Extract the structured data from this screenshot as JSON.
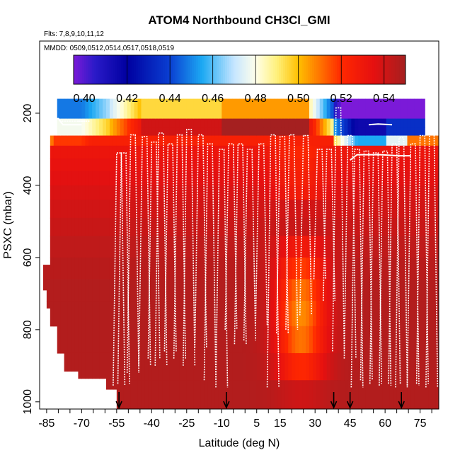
{
  "chart_data": {
    "type": "heatmap",
    "title": "ATOM4 Northbound CH3Cl_GMI",
    "subtitle_flights": "Flts: 7,8,9,10,11,12",
    "subtitle_dates": "MMDD: 0509,0512,0514,0517,0518,0519",
    "xlabel": "Latitude (deg N)",
    "ylabel": "PSXC (mbar)",
    "xlim": [
      -88,
      83
    ],
    "ylim": [
      1020,
      0
    ],
    "x_tick_labels": [
      -85,
      -70,
      -55,
      -40,
      -25,
      -10,
      5,
      15,
      30,
      45,
      60,
      75
    ],
    "y_tick_labels": [
      200,
      400,
      600,
      800,
      1000
    ],
    "colorbar": {
      "range": [
        0.395,
        0.55
      ],
      "tick_labels": [
        "0.40",
        "0.42",
        "0.44",
        "0.46",
        "0.48",
        "0.50",
        "0.52",
        "0.54"
      ],
      "boundaries": [
        0.42,
        0.44,
        0.46,
        0.48,
        0.5,
        0.52,
        0.54
      ],
      "color_stops": [
        [
          0.395,
          "#7b1ad8"
        ],
        [
          0.405,
          "#2a1ac8"
        ],
        [
          0.42,
          "#0000a0"
        ],
        [
          0.44,
          "#0a3fd2"
        ],
        [
          0.455,
          "#1ca9f3"
        ],
        [
          0.47,
          "#c6e6ff"
        ],
        [
          0.48,
          "#ffffea"
        ],
        [
          0.49,
          "#fff07a"
        ],
        [
          0.5,
          "#ffc000"
        ],
        [
          0.51,
          "#ff7400"
        ],
        [
          0.52,
          "#ff2800"
        ],
        [
          0.535,
          "#e61010"
        ],
        [
          0.55,
          "#a52020"
        ]
      ]
    },
    "surface_markers_lat": [
      -54,
      -8,
      38,
      45,
      67
    ],
    "flight_track_note": "white dotted lines = aircraft profiles"
  }
}
